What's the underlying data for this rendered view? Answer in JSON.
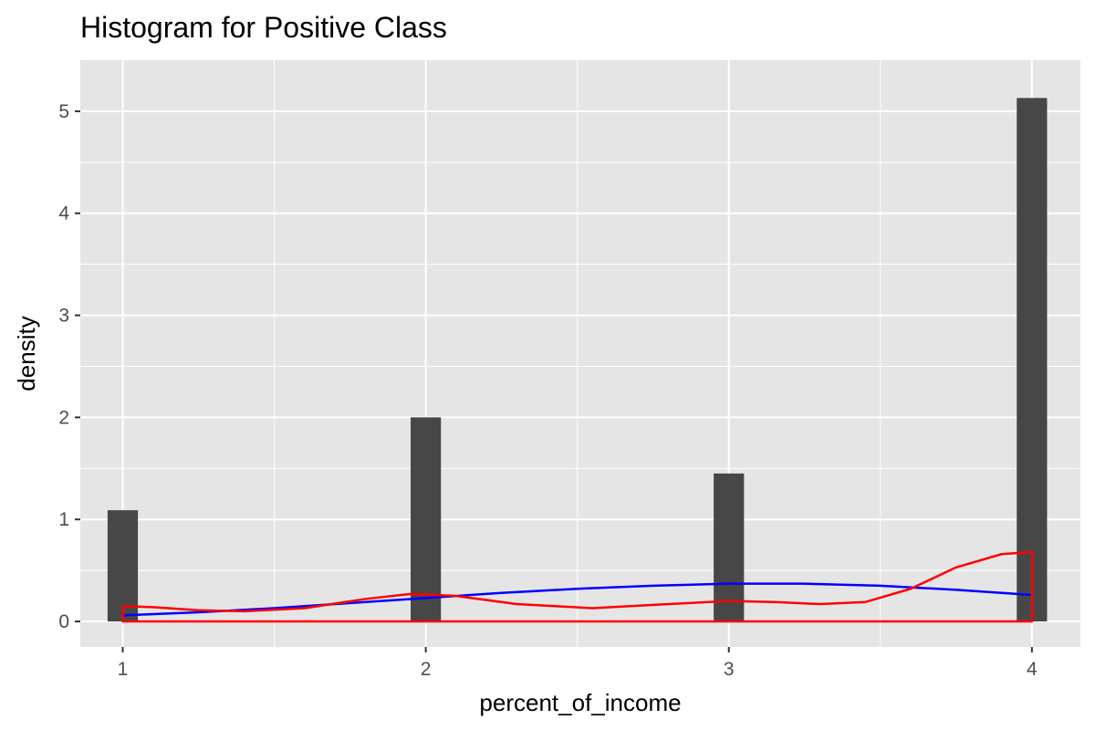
{
  "chart_data": {
    "type": "bar",
    "title": "Histogram for Positive Class",
    "xlabel": "percent_of_income",
    "ylabel": "density",
    "xlim": [
      0.86,
      4.16
    ],
    "ylim": [
      -0.25,
      5.5
    ],
    "x_ticks": [
      1,
      2,
      3,
      4
    ],
    "x_tick_labels": [
      "1",
      "2",
      "3",
      "4"
    ],
    "y_ticks": [
      0,
      1,
      2,
      3,
      4,
      5
    ],
    "y_tick_labels": [
      "0",
      "1",
      "2",
      "3",
      "4",
      "5"
    ],
    "bin_width": 0.1,
    "bars": [
      {
        "x": 1,
        "density": 1.09
      },
      {
        "x": 2,
        "density": 2.0
      },
      {
        "x": 3,
        "density": 1.45
      },
      {
        "x": 4,
        "density": 5.13
      }
    ],
    "bar_color": "#474747",
    "panel_background": "#e5e5e5",
    "grid": true,
    "series": [
      {
        "type": "line",
        "color": "#0000ff",
        "x": [
          1.0,
          1.25,
          1.5,
          1.75,
          2.0,
          2.25,
          2.5,
          2.75,
          3.0,
          3.25,
          3.5,
          3.75,
          4.0
        ],
        "y": [
          0.06,
          0.09,
          0.13,
          0.18,
          0.23,
          0.28,
          0.32,
          0.35,
          0.37,
          0.37,
          0.35,
          0.31,
          0.26
        ]
      },
      {
        "type": "density-outline",
        "color": "#ff0000",
        "x": [
          1.0,
          1.1,
          1.25,
          1.4,
          1.6,
          1.8,
          1.95,
          2.1,
          2.3,
          2.55,
          2.8,
          3.0,
          3.15,
          3.3,
          3.45,
          3.6,
          3.75,
          3.9,
          4.0
        ],
        "y": [
          0.15,
          0.14,
          0.11,
          0.1,
          0.13,
          0.22,
          0.27,
          0.25,
          0.17,
          0.13,
          0.17,
          0.2,
          0.19,
          0.17,
          0.19,
          0.32,
          0.53,
          0.66,
          0.68
        ]
      }
    ]
  }
}
